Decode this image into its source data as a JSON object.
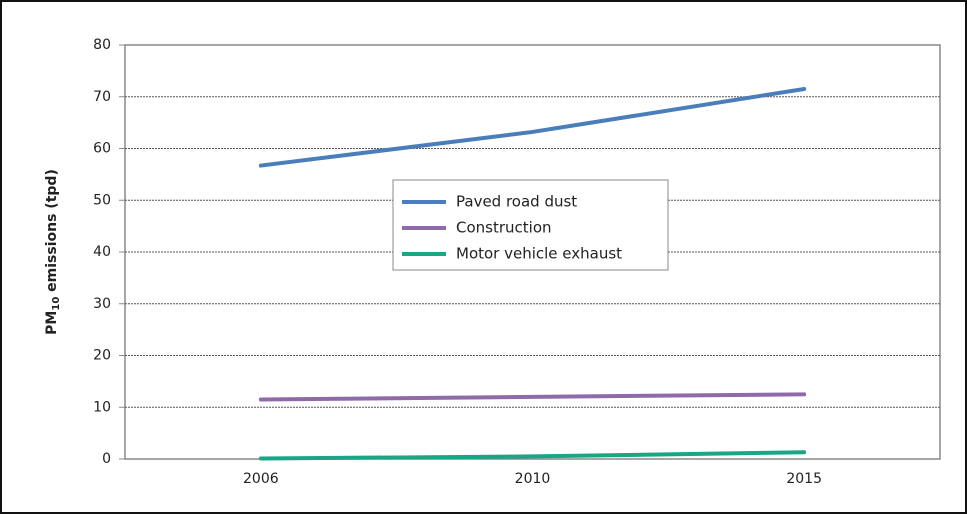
{
  "chart_data": {
    "type": "line",
    "y_label": [
      "PM",
      "10",
      " emissions (tpd)"
    ],
    "categories": [
      "2006",
      "2010",
      "2015"
    ],
    "series": [
      {
        "name": "Paved road dust",
        "color": "#4a7ebb",
        "values": [
          56.7,
          63.2,
          71.5
        ]
      },
      {
        "name": "Construction",
        "color": "#8f6aa8",
        "values": [
          11.5,
          12,
          12.5
        ]
      },
      {
        "name": "Motor vehicle exhaust",
        "color": "#1aa584",
        "values": [
          0.1,
          0.5,
          1.3
        ]
      }
    ],
    "ylim": [
      0,
      80
    ],
    "yticks": [
      0,
      10,
      20,
      30,
      40,
      50,
      60,
      70,
      80
    ],
    "grid": true
  }
}
